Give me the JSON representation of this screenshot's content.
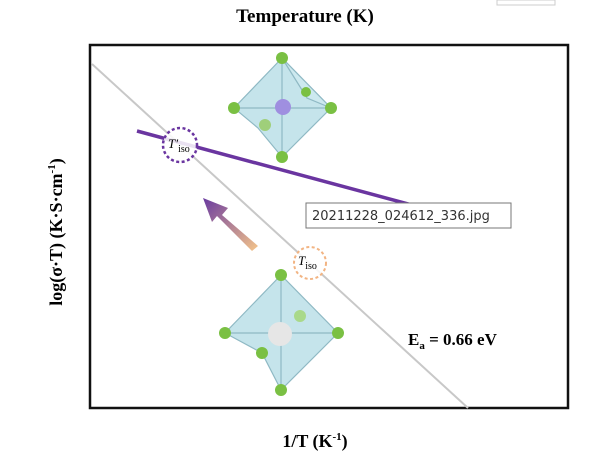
{
  "top_axis_label": "Temperature (K)",
  "x_axis_label": {
    "main": "1/T (K",
    "sup": "-1",
    "end": ")"
  },
  "y_axis_label": {
    "main": "log(σ·T) (K·S·cm",
    "sup": "-1",
    "end": ")"
  },
  "activation_energy": {
    "main": "E",
    "sub": "a",
    "rest": " = 0.66 eV"
  },
  "point_labels": [
    {
      "main": "T′",
      "sub": "iso"
    },
    {
      "main": "T",
      "sub": "iso"
    }
  ],
  "tooltip": "20211228_024612_336.jpg"
}
